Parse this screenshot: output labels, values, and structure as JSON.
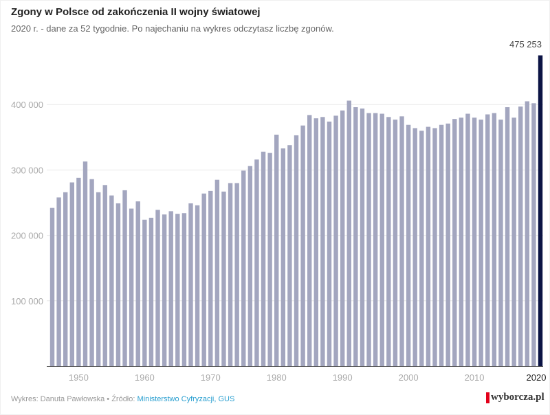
{
  "header": {
    "title": "Zgony w Polsce od zakończenia II wojny światowej",
    "subtitle": "2020 r. - dane za 52 tygodnie. Po najechaniu na wykres odczytasz liczbę zgonów."
  },
  "footer": {
    "credit": "Wykres: Danuta Pawłowska • Źródło: ",
    "source": "Ministerstwo Cyfryzacji, GUS",
    "logo": "wyborcza.pl"
  },
  "colors": {
    "bar": "#a3a6bf",
    "highlight": "#0c1445",
    "grid": "#e8e8e8",
    "axis": "#555555",
    "tick_label": "#aaaaaa",
    "tick_label_highlight": "#222222",
    "logo_mark": "#e2001a",
    "source_link": "#2a9fd0"
  },
  "chart_data": {
    "type": "bar",
    "title": "Zgony w Polsce od zakończenia II wojny światowej",
    "subtitle": "2020 r. - dane za 52 tygodnie. Po najechaniu na wykres odczytasz liczbę zgonów.",
    "xlabel": "",
    "ylabel": "",
    "ylim": [
      0,
      480000
    ],
    "grid": true,
    "yticks": [
      100000,
      200000,
      300000,
      400000
    ],
    "ytick_labels": [
      "100 000",
      "200 000",
      "300 000",
      "400 000"
    ],
    "xticks": [
      1950,
      1960,
      1970,
      1980,
      1990,
      2000,
      2010,
      2020
    ],
    "xtick_labels": [
      "1950",
      "1960",
      "1970",
      "1980",
      "1990",
      "2000",
      "2010",
      "2020"
    ],
    "highlight_category": "2020",
    "highlight_label": "475 253",
    "categories": [
      "1946",
      "1947",
      "1948",
      "1949",
      "1950",
      "1951",
      "1952",
      "1953",
      "1954",
      "1955",
      "1956",
      "1957",
      "1958",
      "1959",
      "1960",
      "1961",
      "1962",
      "1963",
      "1964",
      "1965",
      "1966",
      "1967",
      "1968",
      "1969",
      "1970",
      "1971",
      "1972",
      "1973",
      "1974",
      "1975",
      "1976",
      "1977",
      "1978",
      "1979",
      "1980",
      "1981",
      "1982",
      "1983",
      "1984",
      "1985",
      "1986",
      "1987",
      "1988",
      "1989",
      "1990",
      "1991",
      "1992",
      "1993",
      "1994",
      "1995",
      "1996",
      "1997",
      "1998",
      "1999",
      "2000",
      "2001",
      "2002",
      "2003",
      "2004",
      "2005",
      "2006",
      "2007",
      "2008",
      "2009",
      "2010",
      "2011",
      "2012",
      "2013",
      "2014",
      "2015",
      "2016",
      "2017",
      "2018",
      "2019",
      "2020"
    ],
    "values": [
      242000,
      258000,
      266000,
      281000,
      288000,
      313000,
      286000,
      266000,
      277000,
      261000,
      249000,
      269000,
      241000,
      252000,
      224000,
      227000,
      239000,
      232000,
      237000,
      233000,
      234000,
      249000,
      246000,
      264000,
      268000,
      285000,
      267000,
      280000,
      280000,
      299000,
      306000,
      316000,
      328000,
      326000,
      354000,
      333000,
      338000,
      353000,
      368000,
      384000,
      379000,
      381000,
      374000,
      383000,
      391000,
      406000,
      396000,
      394000,
      387000,
      387000,
      386000,
      381000,
      377000,
      382000,
      369000,
      364000,
      360000,
      366000,
      364000,
      369000,
      371000,
      378000,
      380000,
      386000,
      380000,
      377000,
      385000,
      387000,
      377000,
      396000,
      380000,
      397000,
      405000,
      402000,
      475253
    ]
  }
}
